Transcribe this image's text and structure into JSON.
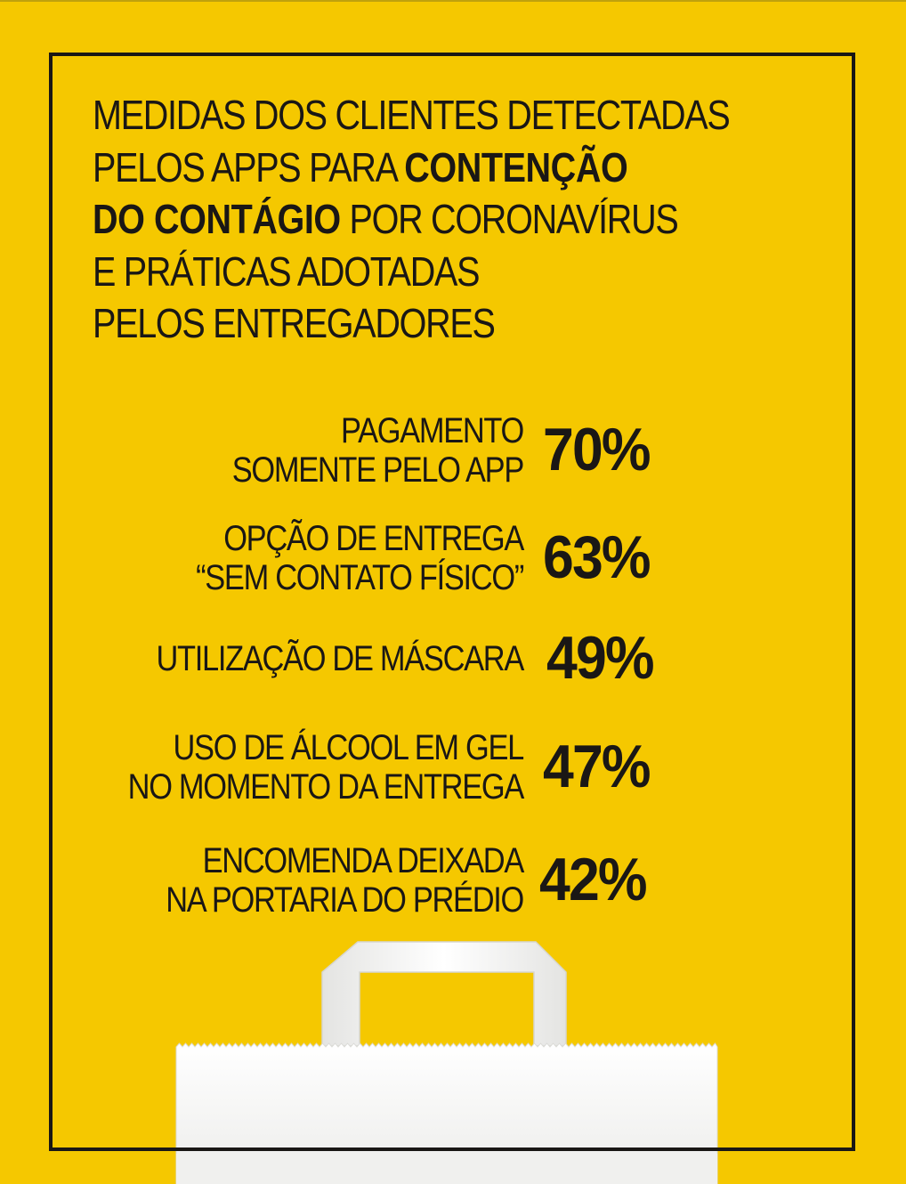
{
  "title": {
    "lines": [
      [
        {
          "text": "MEDIDAS DOS CLIENTES DETECTADAS",
          "bold": false
        }
      ],
      [
        {
          "text": "PELOS APPS PARA ",
          "bold": false
        },
        {
          "text": "CONTENÇÃO",
          "bold": true
        }
      ],
      [
        {
          "text": "DO CONTÁGIO",
          "bold": true
        },
        {
          "text": " POR CORONAVÍRUS",
          "bold": false
        }
      ],
      [
        {
          "text": "E PRÁTICAS ADOTADAS",
          "bold": false
        }
      ],
      [
        {
          "text": "PELOS ENTREGADORES",
          "bold": false
        }
      ]
    ]
  },
  "chart_data": {
    "type": "table",
    "unit": "%",
    "rows": [
      {
        "label_lines": [
          "PAGAMENTO",
          "SOMENTE PELO APP"
        ],
        "value": 70,
        "display": "70%"
      },
      {
        "label_lines": [
          "OPÇÃO DE ENTREGA",
          "“SEM CONTATO FÍSICO”"
        ],
        "value": 63,
        "display": "63%"
      },
      {
        "label_lines": [
          "UTILIZAÇÃO DE MÁSCARA"
        ],
        "value": 49,
        "display": "49%"
      },
      {
        "label_lines": [
          "USO DE ÁLCOOL EM GEL",
          "NO MOMENTO DA ENTREGA"
        ],
        "value": 47,
        "display": "47%"
      },
      {
        "label_lines": [
          "ENCOMENDA DEIXADA",
          "NA PORTARIA DO PRÉDIO"
        ],
        "value": 42,
        "display": "42%"
      }
    ]
  },
  "colors": {
    "background": "#f5c800",
    "text": "#1a1715",
    "bag": "#f7f7f5"
  },
  "illustration": "paper-bag-icon"
}
